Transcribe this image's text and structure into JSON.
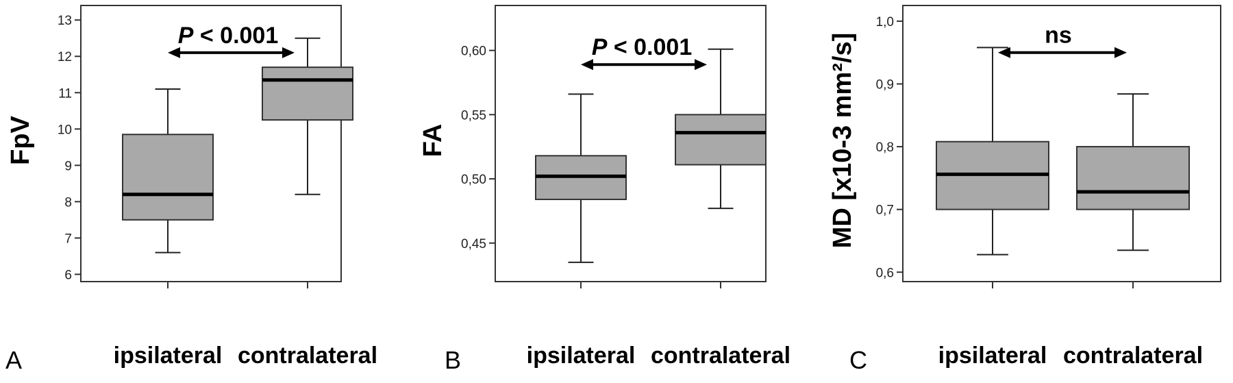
{
  "chart_data": [
    {
      "type": "boxplot",
      "panel_label": "A",
      "ylabel": "FpV",
      "ylim": [
        5.8,
        13.4
      ],
      "yticks": [
        6,
        7,
        8,
        9,
        10,
        11,
        12,
        13
      ],
      "ytick_labels": [
        "6",
        "7",
        "8",
        "9",
        "10",
        "11",
        "12",
        "13"
      ],
      "categories": [
        "ipsilateral",
        "contralateral"
      ],
      "boxes": [
        {
          "category": "ipsilateral",
          "whisker_low": 6.6,
          "q1": 7.5,
          "median": 8.2,
          "q3": 9.85,
          "whisker_high": 11.1
        },
        {
          "category": "contralateral",
          "whisker_low": 8.2,
          "q1": 10.25,
          "median": 11.35,
          "q3": 11.7,
          "whisker_high": 12.5
        }
      ],
      "annotation": {
        "p_symbol": "P",
        "text": " < 0.001",
        "y": 12.1
      },
      "grid": false
    },
    {
      "type": "boxplot",
      "panel_label": "B",
      "ylabel": "FA",
      "ylim": [
        0.42,
        0.635
      ],
      "yticks": [
        0.45,
        0.5,
        0.55,
        0.6
      ],
      "ytick_labels": [
        "0,45",
        "0,50",
        "0,55",
        "0,60"
      ],
      "categories": [
        "ipsilateral",
        "contralateral"
      ],
      "boxes": [
        {
          "category": "ipsilateral",
          "whisker_low": 0.435,
          "q1": 0.484,
          "median": 0.502,
          "q3": 0.518,
          "whisker_high": 0.566
        },
        {
          "category": "contralateral",
          "whisker_low": 0.477,
          "q1": 0.511,
          "median": 0.536,
          "q3": 0.55,
          "whisker_high": 0.601
        }
      ],
      "annotation": {
        "p_symbol": "P",
        "text": " < 0.001",
        "y": 0.589
      },
      "grid": false
    },
    {
      "type": "boxplot",
      "panel_label": "C",
      "ylabel": "MD [x10-3 mm²/s]",
      "ylim": [
        0.585,
        1.025
      ],
      "yticks": [
        0.6,
        0.7,
        0.8,
        0.9,
        1.0
      ],
      "ytick_labels": [
        "0,6",
        "0,7",
        "0,8",
        "0,9",
        "1,0"
      ],
      "categories": [
        "ipsilateral",
        "contralateral"
      ],
      "boxes": [
        {
          "category": "ipsilateral",
          "whisker_low": 0.628,
          "q1": 0.7,
          "median": 0.756,
          "q3": 0.808,
          "whisker_high": 0.958
        },
        {
          "category": "contralateral",
          "whisker_low": 0.635,
          "q1": 0.7,
          "median": 0.728,
          "q3": 0.8,
          "whisker_high": 0.884
        }
      ],
      "annotation": {
        "p_symbol": "",
        "text": "ns",
        "y": 0.95
      },
      "grid": false
    }
  ]
}
